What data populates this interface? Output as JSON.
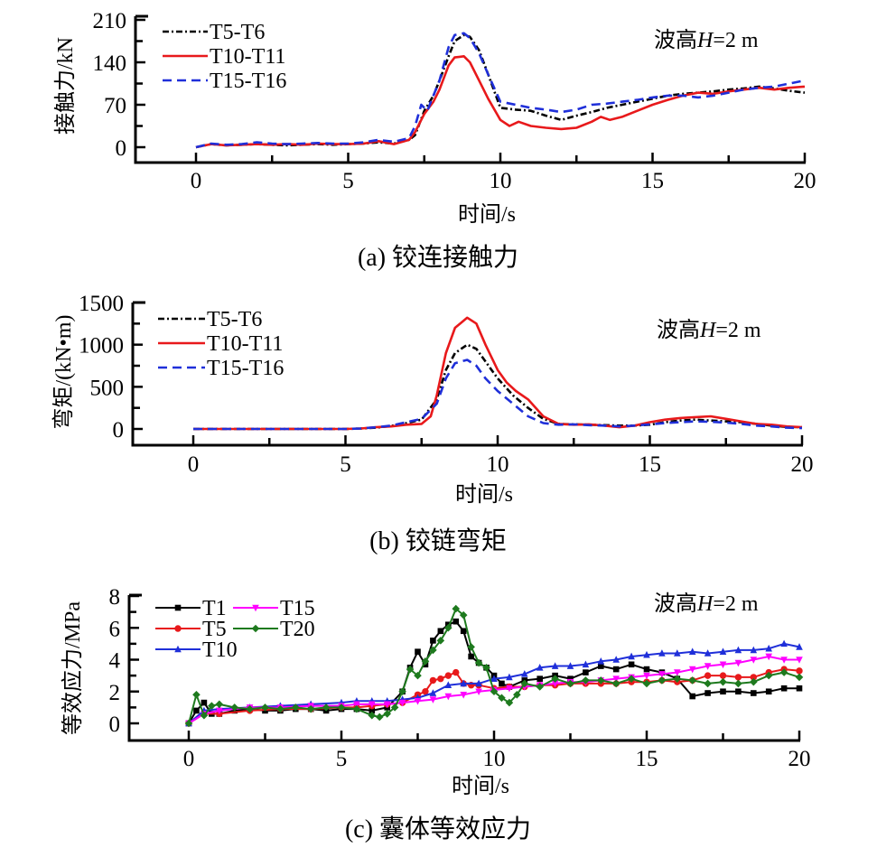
{
  "chart_data": [
    {
      "id": "a",
      "type": "line",
      "caption": "(a)  铰连接触力",
      "xlabel": "时间/s",
      "ylabel": "接触力/kN",
      "annotation": "波高H=2 m",
      "annotation_parts": [
        "波高",
        "H",
        "=2 m"
      ],
      "xlim": [
        0,
        20
      ],
      "ylim": [
        0,
        210
      ],
      "xticks": [
        0,
        5,
        10,
        15,
        20
      ],
      "yticks": [
        0,
        70,
        140,
        210
      ],
      "legend_position": "top-left",
      "grid": false,
      "series": [
        {
          "name": "T5-T6",
          "color": "#000000",
          "style": "dashdot",
          "x": [
            0,
            0.5,
            1,
            1.5,
            2,
            2.5,
            3,
            3.5,
            4,
            4.5,
            5,
            5.5,
            6,
            6.5,
            7,
            7.2,
            7.5,
            7.8,
            8,
            8.3,
            8.5,
            8.8,
            9,
            9.3,
            9.6,
            10,
            10.5,
            11,
            11.5,
            12,
            12.5,
            13,
            13.5,
            14,
            14.5,
            15,
            15.5,
            16,
            16.5,
            17,
            17.5,
            18,
            18.5,
            19,
            19.5,
            20
          ],
          "y": [
            0,
            5,
            3,
            4,
            5,
            4,
            3,
            4,
            5,
            4,
            5,
            6,
            8,
            6,
            12,
            20,
            60,
            85,
            110,
            150,
            175,
            185,
            182,
            160,
            120,
            65,
            62,
            60,
            52,
            45,
            52,
            58,
            65,
            70,
            75,
            80,
            85,
            88,
            90,
            92,
            95,
            97,
            100,
            97,
            93,
            90
          ]
        },
        {
          "name": "T10-T11",
          "color": "#e8191b",
          "style": "solid",
          "x": [
            0,
            0.5,
            1,
            1.5,
            2,
            2.5,
            3,
            3.5,
            4,
            4.5,
            5,
            5.5,
            6,
            6.5,
            7,
            7.2,
            7.5,
            7.8,
            8,
            8.3,
            8.5,
            8.8,
            9,
            9.3,
            9.6,
            10,
            10.3,
            10.6,
            11,
            11.5,
            12,
            12.5,
            13,
            13.3,
            13.6,
            14,
            14.5,
            15,
            15.5,
            16,
            16.5,
            17,
            17.5,
            18,
            18.5,
            19,
            19.5,
            20
          ],
          "y": [
            0,
            5,
            3,
            4,
            5,
            4,
            5,
            4,
            6,
            5,
            5,
            6,
            10,
            5,
            12,
            25,
            55,
            75,
            95,
            135,
            148,
            150,
            140,
            110,
            80,
            45,
            35,
            42,
            35,
            32,
            30,
            32,
            42,
            50,
            45,
            50,
            60,
            70,
            78,
            85,
            90,
            88,
            92,
            95,
            98,
            95,
            98,
            100
          ]
        },
        {
          "name": "T15-T16",
          "color": "#1f2fd9",
          "style": "dashed",
          "x": [
            0,
            0.5,
            1,
            1.5,
            2,
            2.5,
            3,
            3.5,
            4,
            4.5,
            5,
            5.5,
            6,
            6.5,
            7,
            7.2,
            7.4,
            7.6,
            8,
            8.3,
            8.5,
            8.8,
            9,
            9.3,
            9.6,
            10,
            10.5,
            11,
            11.5,
            12,
            12.5,
            13,
            13.5,
            14,
            14.5,
            15,
            15.5,
            16,
            16.5,
            17,
            17.5,
            18,
            18.5,
            19,
            19.5,
            20
          ],
          "y": [
            0,
            6,
            4,
            5,
            8,
            6,
            5,
            6,
            7,
            6,
            6,
            8,
            12,
            9,
            15,
            35,
            70,
            60,
            110,
            165,
            185,
            188,
            180,
            155,
            120,
            75,
            70,
            65,
            62,
            58,
            62,
            70,
            72,
            75,
            78,
            82,
            85,
            85,
            82,
            85,
            90,
            95,
            98,
            100,
            105,
            110
          ]
        }
      ]
    },
    {
      "id": "b",
      "type": "line",
      "caption": "(b)  铰链弯矩",
      "xlabel": "时间/s",
      "ylabel": "弯矩/(kN•m)",
      "annotation": "波高H=2 m",
      "annotation_parts": [
        "波高",
        "H",
        "=2 m"
      ],
      "xlim": [
        0,
        20
      ],
      "ylim": [
        0,
        1500
      ],
      "xticks": [
        0,
        5,
        10,
        15,
        20
      ],
      "yticks": [
        0,
        500,
        1000,
        1500
      ],
      "legend_position": "top-left",
      "grid": false,
      "series": [
        {
          "name": "T5-T6",
          "color": "#000000",
          "style": "dashdot",
          "x": [
            0,
            1,
            2,
            3,
            4,
            5,
            5.5,
            6,
            6.5,
            7,
            7.5,
            8,
            8.3,
            8.6,
            9,
            9.3,
            9.6,
            10,
            10.5,
            11,
            11.5,
            12,
            12.5,
            13,
            13.5,
            14,
            14.5,
            15,
            15.5,
            16,
            16.5,
            17,
            17.5,
            18,
            18.5,
            19,
            19.5,
            20
          ],
          "y": [
            0,
            0,
            0,
            0,
            0,
            0,
            5,
            15,
            35,
            70,
            110,
            350,
            700,
            900,
            1000,
            950,
            800,
            600,
            400,
            250,
            120,
            60,
            55,
            50,
            45,
            40,
            40,
            50,
            80,
            100,
            110,
            100,
            90,
            80,
            60,
            40,
            25,
            20
          ]
        },
        {
          "name": "T10-T11",
          "color": "#e8191b",
          "style": "solid",
          "x": [
            0,
            1,
            2,
            3,
            4,
            5,
            5.5,
            6,
            6.5,
            7,
            7.5,
            7.8,
            8,
            8.3,
            8.6,
            9,
            9.3,
            9.6,
            10,
            10.3,
            10.6,
            11,
            11.5,
            12,
            12.5,
            13,
            13.5,
            14,
            14.5,
            15,
            15.5,
            16,
            16.5,
            17,
            17.5,
            18,
            18.5,
            19,
            19.5,
            20
          ],
          "y": [
            0,
            0,
            0,
            0,
            0,
            0,
            5,
            20,
            30,
            50,
            60,
            150,
            400,
            900,
            1200,
            1320,
            1250,
            1000,
            700,
            550,
            450,
            350,
            150,
            60,
            50,
            55,
            40,
            20,
            40,
            80,
            110,
            130,
            140,
            150,
            120,
            90,
            60,
            50,
            30,
            20
          ]
        },
        {
          "name": "T15-T16",
          "color": "#1f2fd9",
          "style": "dashed",
          "x": [
            0,
            1,
            2,
            3,
            4,
            5,
            5.5,
            6,
            6.5,
            7,
            7.5,
            8,
            8.3,
            8.6,
            9,
            9.3,
            9.6,
            10,
            10.5,
            11,
            11.5,
            12,
            12.5,
            13,
            13.5,
            14,
            14.5,
            15,
            15.5,
            16,
            16.5,
            17,
            17.5,
            18,
            18.5,
            19,
            19.5,
            20
          ],
          "y": [
            0,
            0,
            0,
            0,
            0,
            0,
            5,
            20,
            40,
            80,
            120,
            300,
            600,
            780,
            820,
            750,
            600,
            450,
            300,
            150,
            70,
            50,
            55,
            45,
            40,
            30,
            40,
            55,
            70,
            80,
            90,
            85,
            75,
            60,
            40,
            30,
            15,
            10
          ]
        }
      ]
    },
    {
      "id": "c",
      "type": "line",
      "caption": "(c)  囊体等效应力",
      "xlabel": "时间/s",
      "ylabel": "等效应力/MPa",
      "annotation": "波高H=2 m",
      "annotation_parts": [
        "波高",
        "H",
        "=2 m"
      ],
      "xlim": [
        0,
        20
      ],
      "ylim": [
        0,
        8
      ],
      "xticks": [
        0,
        5,
        10,
        15,
        20
      ],
      "yticks": [
        0,
        2,
        4,
        6,
        8
      ],
      "legend_position": "top-left",
      "grid": false,
      "series": [
        {
          "name": "T1",
          "color": "#000000",
          "marker": "square",
          "x": [
            0,
            0.25,
            0.5,
            0.75,
            1,
            1.5,
            2,
            2.5,
            3,
            3.5,
            4,
            4.5,
            5,
            5.5,
            6,
            6.5,
            7,
            7.25,
            7.5,
            7.75,
            8,
            8.25,
            8.5,
            8.75,
            9,
            9.25,
            9.5,
            9.75,
            10,
            10.25,
            10.5,
            11,
            11.5,
            12,
            12.5,
            13,
            13.5,
            14,
            14.5,
            15,
            15.5,
            16,
            16.5,
            17,
            17.5,
            18,
            18.5,
            19,
            19.5,
            20
          ],
          "y": [
            0,
            0.8,
            1.3,
            0.6,
            0.6,
            0.8,
            0.9,
            0.8,
            0.8,
            0.9,
            0.9,
            0.8,
            0.9,
            0.9,
            0.8,
            1.0,
            2.0,
            3.5,
            4.5,
            3.7,
            5.2,
            5.8,
            6.2,
            6.4,
            5.8,
            4.2,
            3.8,
            3.5,
            3.0,
            2.5,
            2.3,
            2.7,
            2.8,
            3.0,
            2.8,
            3.2,
            3.6,
            3.4,
            3.7,
            3.4,
            3.2,
            2.8,
            1.7,
            1.9,
            2.0,
            2.0,
            1.9,
            2.0,
            2.2,
            2.2
          ]
        },
        {
          "name": "T5",
          "color": "#e8191b",
          "marker": "circle",
          "x": [
            0,
            0.5,
            1,
            2,
            3,
            4,
            5,
            5.5,
            6,
            6.5,
            7,
            7.5,
            7.75,
            8,
            8.25,
            8.5,
            8.75,
            9,
            9.25,
            9.5,
            10,
            10.5,
            11,
            11.5,
            12,
            12.5,
            13,
            13.5,
            14,
            14.5,
            15,
            15.5,
            16,
            16.5,
            17,
            17.5,
            18,
            18.5,
            19,
            19.5,
            20
          ],
          "y": [
            0,
            0.6,
            0.6,
            0.8,
            0.9,
            0.9,
            1.0,
            1.0,
            1.1,
            1.2,
            1.3,
            1.8,
            2.0,
            2.7,
            2.8,
            3.0,
            3.2,
            2.5,
            2.4,
            2.4,
            2.2,
            2.3,
            2.3,
            2.4,
            2.4,
            2.5,
            2.5,
            2.5,
            2.5,
            2.6,
            2.6,
            2.7,
            2.6,
            2.7,
            3.0,
            3.0,
            2.9,
            2.9,
            3.2,
            3.4,
            3.3
          ]
        },
        {
          "name": "T10",
          "color": "#1f2fd9",
          "marker": "triangle-up",
          "x": [
            0,
            0.5,
            1,
            2,
            3,
            4,
            5,
            5.5,
            6,
            6.5,
            7,
            7.5,
            8,
            8.5,
            9,
            9.5,
            10,
            10.5,
            11,
            11.5,
            12,
            12.5,
            13,
            13.5,
            14,
            14.5,
            15,
            15.5,
            16,
            16.5,
            17,
            17.5,
            18,
            18.5,
            19,
            19.5,
            20
          ],
          "y": [
            0,
            0.8,
            0.9,
            1.0,
            1.1,
            1.2,
            1.3,
            1.4,
            1.4,
            1.4,
            1.5,
            1.6,
            1.9,
            2.4,
            2.5,
            2.5,
            2.8,
            2.9,
            3.1,
            3.5,
            3.6,
            3.6,
            3.7,
            3.9,
            4.0,
            4.2,
            4.3,
            4.4,
            4.4,
            4.5,
            4.4,
            4.5,
            4.6,
            4.6,
            4.7,
            5.0,
            4.8
          ]
        },
        {
          "name": "T15",
          "color": "#ff00ff",
          "marker": "triangle-down",
          "x": [
            0,
            0.5,
            1,
            2,
            3,
            4,
            5,
            5.5,
            6,
            6.5,
            7,
            7.5,
            8,
            8.5,
            9,
            9.5,
            10,
            10.5,
            11,
            11.5,
            12,
            12.5,
            13,
            13.5,
            14,
            14.5,
            15,
            15.5,
            16,
            16.5,
            17,
            17.5,
            18,
            18.5,
            19,
            19.5,
            20
          ],
          "y": [
            0,
            0.6,
            0.8,
            1.0,
            1.0,
            1.1,
            1.1,
            1.2,
            1.2,
            1.2,
            1.3,
            1.4,
            1.5,
            1.7,
            1.8,
            2.0,
            2.1,
            2.2,
            2.3,
            2.4,
            2.5,
            2.6,
            2.6,
            2.7,
            2.8,
            2.9,
            3.0,
            3.1,
            3.2,
            3.4,
            3.6,
            3.7,
            3.8,
            4.0,
            4.2,
            4.0,
            4.0
          ]
        },
        {
          "name": "T20",
          "color": "#1e7a1e",
          "marker": "diamond",
          "x": [
            0,
            0.25,
            0.5,
            0.75,
            1,
            1.5,
            2,
            2.5,
            3,
            3.5,
            4,
            4.5,
            5,
            5.5,
            6,
            6.25,
            6.5,
            6.75,
            7,
            7.25,
            7.5,
            7.75,
            8,
            8.25,
            8.5,
            8.75,
            9,
            9.25,
            9.5,
            9.75,
            10,
            10.25,
            10.5,
            10.75,
            11,
            11.5,
            12,
            12.5,
            13,
            13.5,
            14,
            14.5,
            15,
            15.5,
            16,
            16.5,
            17,
            17.5,
            18,
            18.5,
            19,
            19.5,
            20
          ],
          "y": [
            0,
            1.8,
            0.5,
            1.1,
            1.2,
            1.0,
            0.9,
            1.0,
            0.9,
            1.0,
            0.9,
            1.0,
            1.0,
            0.9,
            0.5,
            0.4,
            0.6,
            1.0,
            2.0,
            3.4,
            3.0,
            3.9,
            4.6,
            5.2,
            6.0,
            7.2,
            6.8,
            4.8,
            3.8,
            3.5,
            2.0,
            1.6,
            1.3,
            1.8,
            2.5,
            2.3,
            2.8,
            2.5,
            2.7,
            2.7,
            2.5,
            2.8,
            2.5,
            2.7,
            2.8,
            2.7,
            2.5,
            2.6,
            2.5,
            2.6,
            3.0,
            3.2,
            2.9
          ]
        }
      ]
    }
  ]
}
